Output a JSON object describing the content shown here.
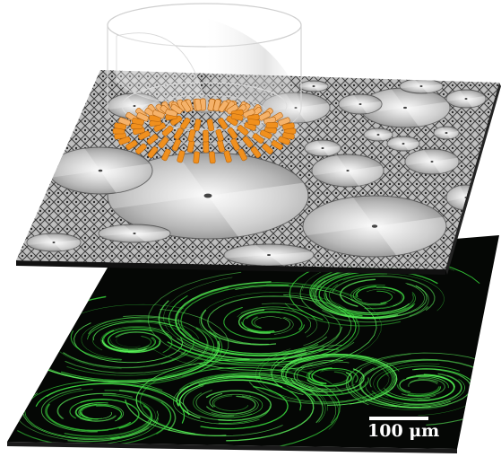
{
  "figure": {
    "scale_bar_label": "100 μm",
    "colors": {
      "background": "#ffffff",
      "plate_edge": "#1a1a1a",
      "disk_metal_light": "#f2f2f2",
      "disk_metal_dark": "#8a8a8a",
      "rotor_orange": "#f0901e",
      "fluorescence_green": "#37d43a",
      "bottom_plate_black": "#050705",
      "scale_text": "#ffffff"
    },
    "layers": [
      {
        "name": "apollonian-disk-plate",
        "description_icon": "rotating-disk-array"
      },
      {
        "name": "fluorescent-flow-field",
        "description_icon": "green-streamlines"
      }
    ]
  }
}
